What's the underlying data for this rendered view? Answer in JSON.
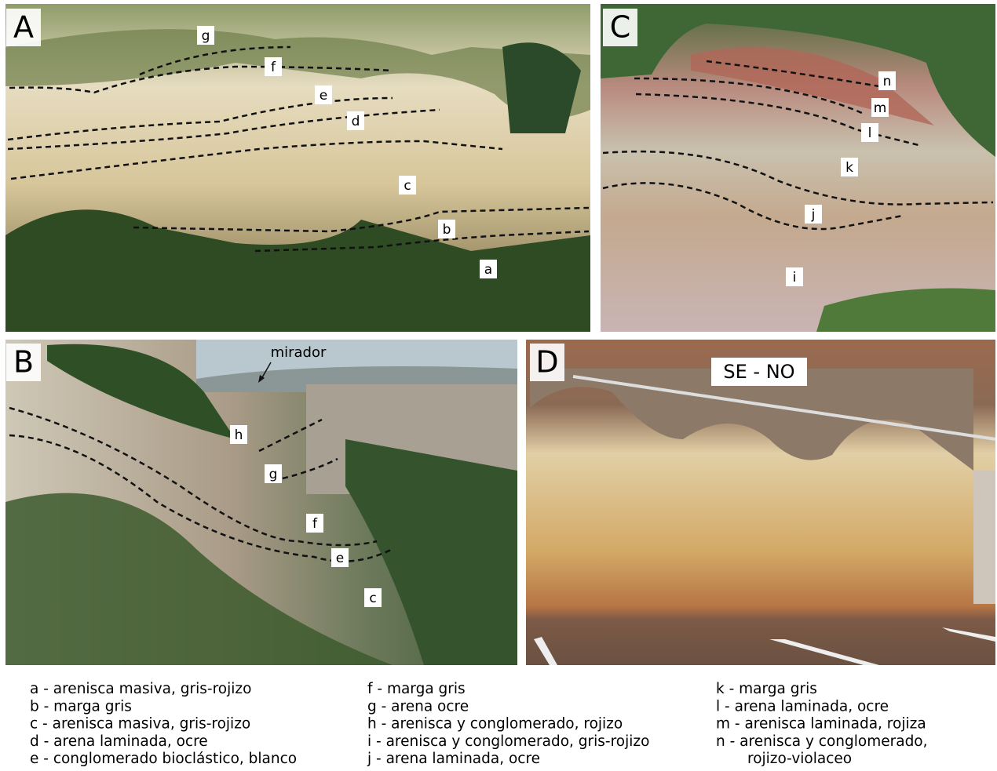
{
  "panels": [
    {
      "letter": "A",
      "labels": [
        "g",
        "f",
        "e",
        "d",
        "c",
        "b",
        "a"
      ]
    },
    {
      "letter": "C",
      "labels": [
        "n",
        "m",
        "l",
        "k",
        "j",
        "i"
      ]
    },
    {
      "letter": "B",
      "labels": [
        "h",
        "g",
        "f",
        "e",
        "c"
      ],
      "annotation": "mirador"
    },
    {
      "letter": "D",
      "labels": [
        "SE - NO"
      ]
    }
  ],
  "legend": {
    "columns": [
      [
        "a - arenisca masiva, gris-rojizo",
        "b - marga gris",
        "c - arenisca masiva, gris-rojizo",
        "d - arena laminada, ocre",
        "e - conglomerado bioclástico, blanco"
      ],
      [
        "f - marga gris",
        "g - arena ocre",
        "h - arenisca y conglomerado, rojizo",
        "i - arenisca y conglomerado, gris-rojizo",
        "j - arena laminada, ocre"
      ],
      [
        "k - marga gris",
        "l - arena laminada, ocre",
        "m - arenisca laminada, rojiza",
        "n - arenisca y conglomerado,",
        "rojizo-violaceo"
      ]
    ]
  }
}
